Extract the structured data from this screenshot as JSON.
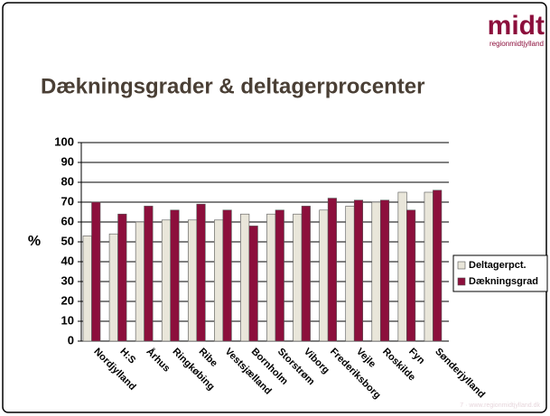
{
  "logo": {
    "name": "midt",
    "sub": "regionmidtjylland"
  },
  "footer": "7 · www.regionmidtjylland.dk",
  "chart_data": {
    "type": "bar",
    "title": "Dækningsgrader & deltagerprocenter",
    "y_label": "%",
    "categories": [
      "Nordjylland",
      "H:S",
      "Århus",
      "Ringkøbing",
      "Ribe",
      "Vestsjælland",
      "Bornholm",
      "Storstrøm",
      "Viborg",
      "Frederiksborg",
      "Vejle",
      "Roskilde",
      "Fyn",
      "Sønderjylland"
    ],
    "series": [
      {
        "name": "Deltagerpct.",
        "color": "#e9e6da",
        "values": [
          53,
          54,
          60,
          61,
          61,
          61,
          64,
          64,
          64,
          66,
          68,
          70,
          75,
          75
        ]
      },
      {
        "name": "Dækningsgrad",
        "color": "#8c0f3c",
        "values": [
          70,
          64,
          68,
          66,
          69,
          66,
          58,
          66,
          68,
          72,
          71,
          71,
          66,
          76
        ]
      }
    ],
    "ylim": [
      0,
      100
    ],
    "yticks": [
      0,
      10,
      20,
      30,
      40,
      50,
      60,
      70,
      80,
      90,
      100
    ],
    "grid": true,
    "legend": "right"
  }
}
